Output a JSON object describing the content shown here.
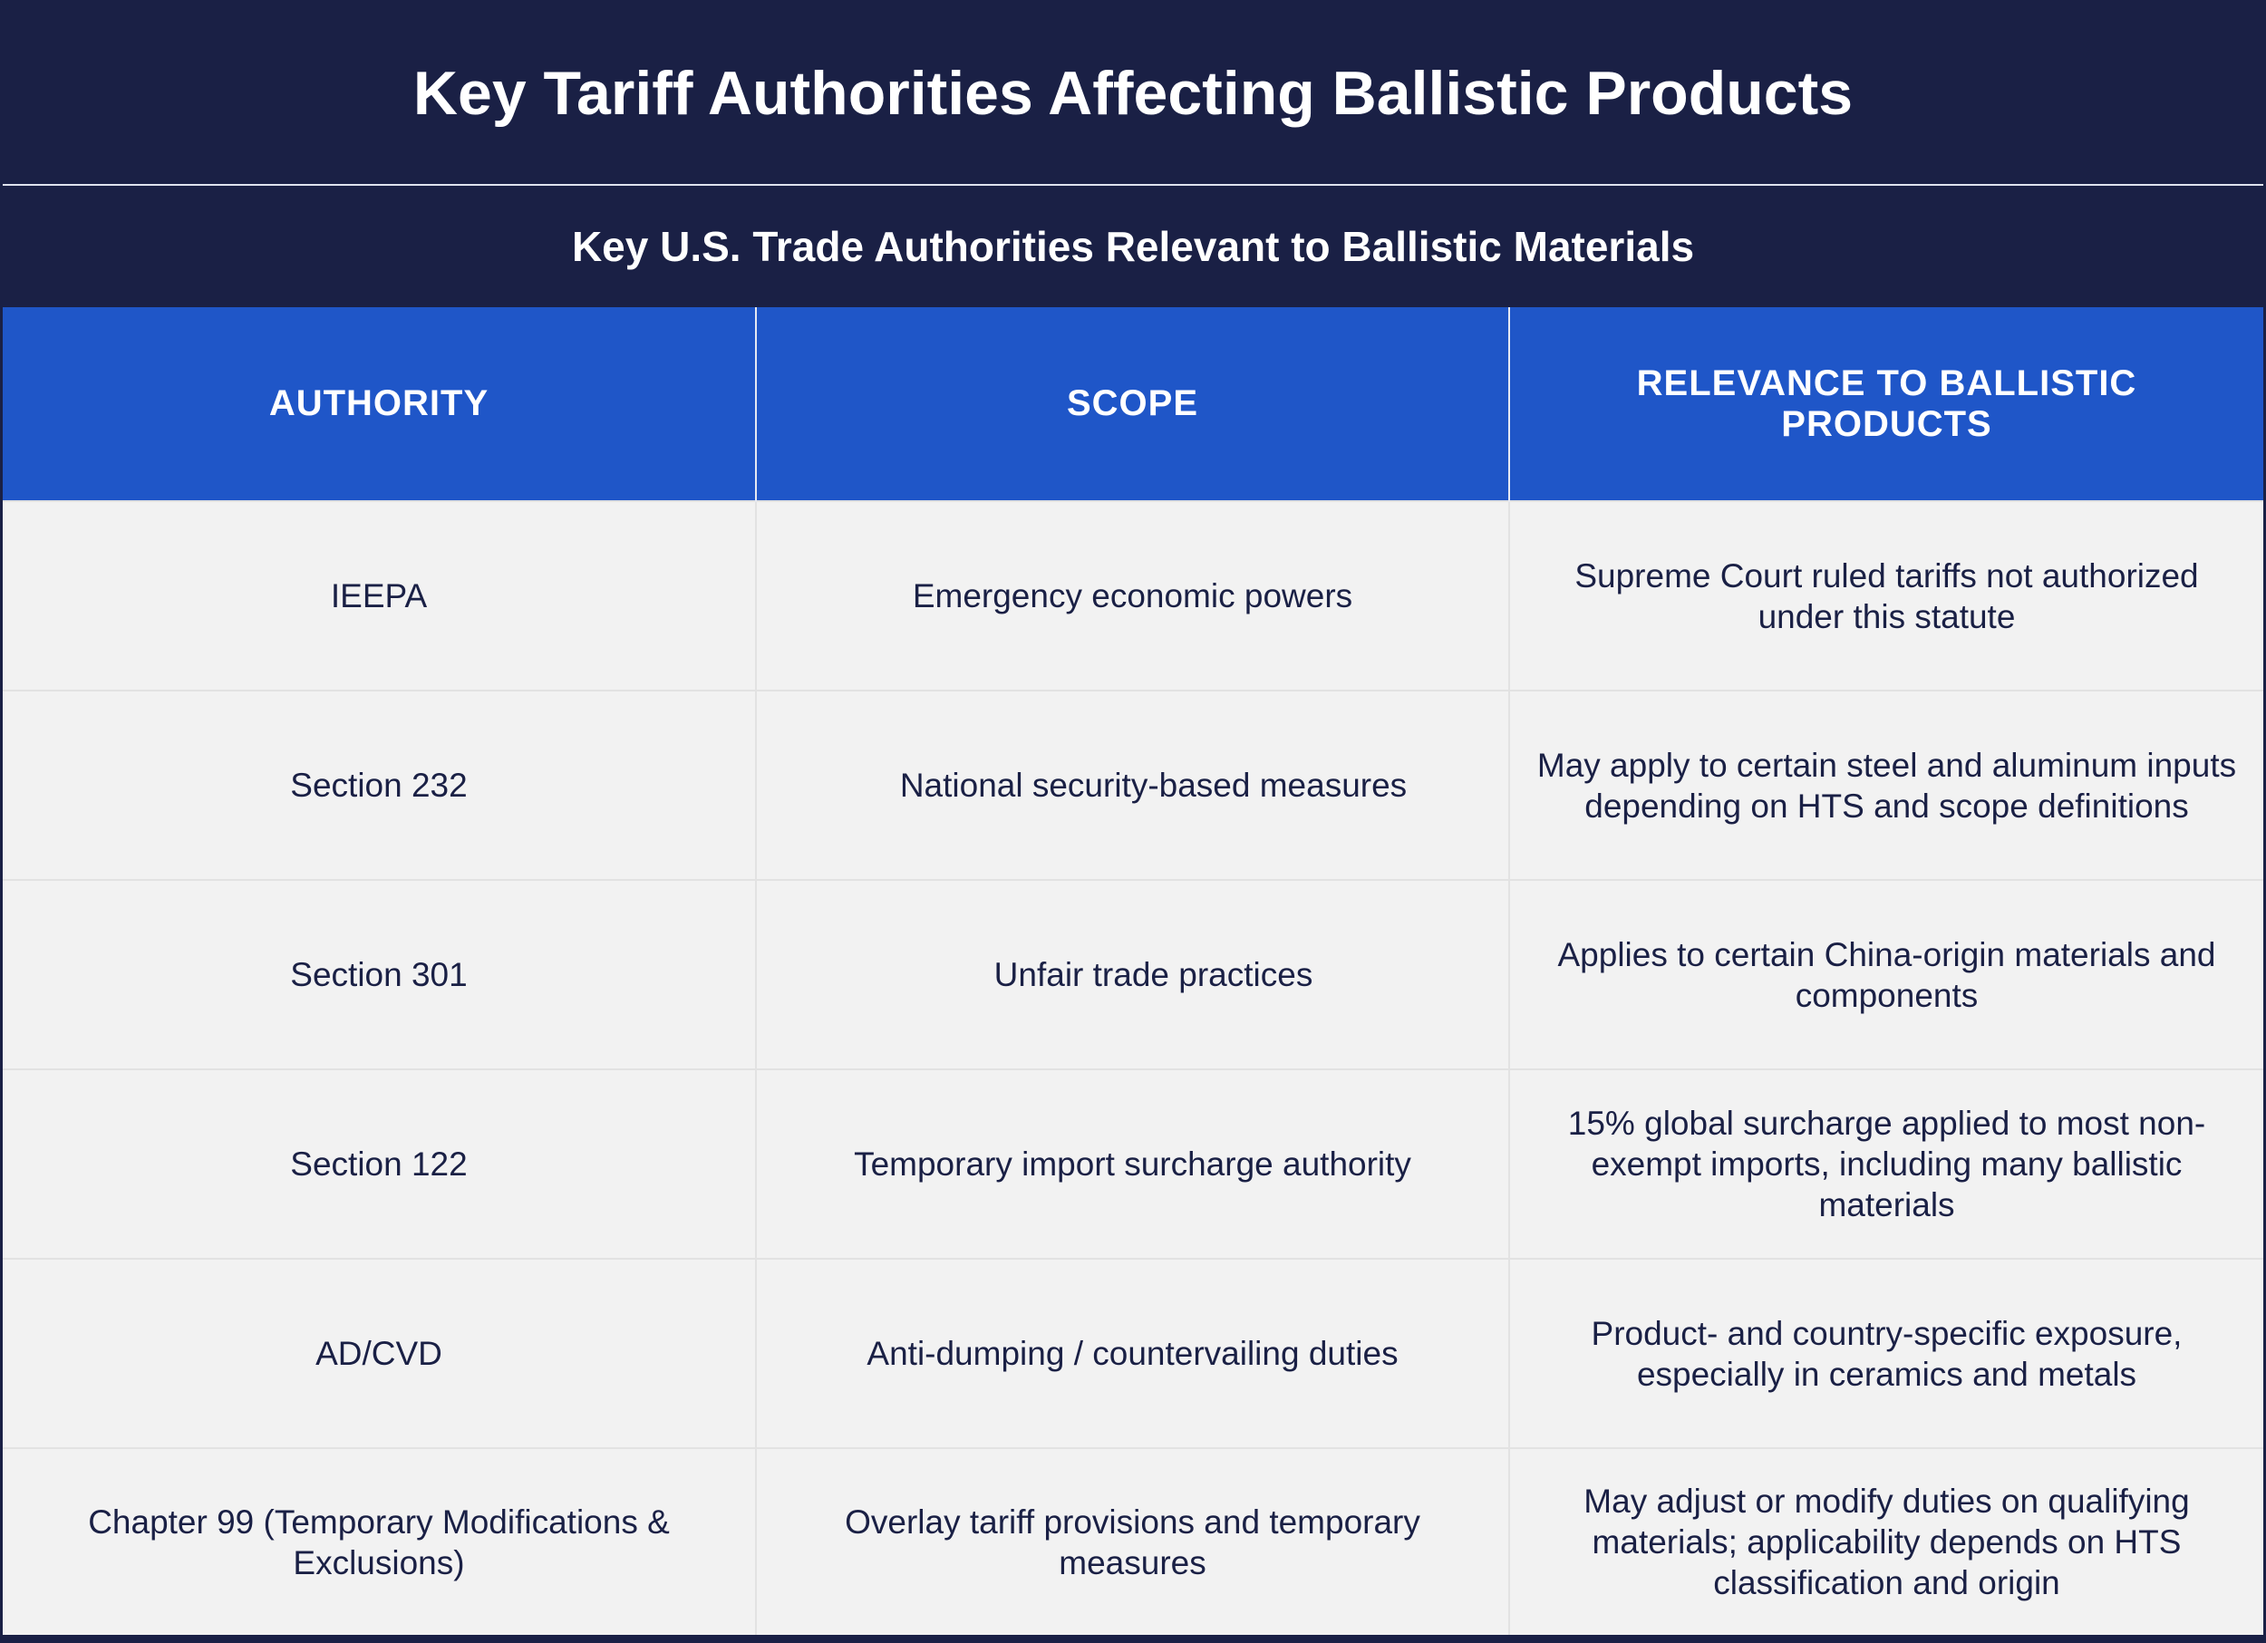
{
  "title": "Key Tariff Authorities Affecting Ballistic Products",
  "subtitle": "Key U.S. Trade Authorities Relevant to Ballistic Materials",
  "columns": [
    "AUTHORITY",
    "SCOPE",
    "RELEVANCE TO BALLISTIC PRODUCTS"
  ],
  "rows": [
    {
      "authority": "IEEPA",
      "scope": "Emergency economic powers",
      "relevance": "Supreme Court ruled tariffs not authorized under this statute"
    },
    {
      "authority": "Section 232",
      "scope": "National security-based measures",
      "relevance": "May apply to certain steel and aluminum inputs depending on HTS and scope definitions"
    },
    {
      "authority": "Section 301",
      "scope": "Unfair trade practices",
      "relevance": "Applies to certain China-origin materials and components"
    },
    {
      "authority": "Section 122",
      "scope": "Temporary import surcharge authority",
      "relevance": "15% global surcharge applied to most non-exempt imports, including many ballistic materials"
    },
    {
      "authority": "AD/CVD",
      "scope": "Anti-dumping / countervailing duties",
      "relevance": "Product- and country-specific exposure, especially in ceramics and metals"
    },
    {
      "authority": "Chapter 99 (Temporary Modifications & Exclusions)",
      "scope": "Overlay tariff provisions and temporary measures",
      "relevance": "May adjust or modify duties on qualifying materials; applicability depends on HTS classification and origin"
    }
  ],
  "colors": {
    "navy": "#1a2045",
    "header_blue": "#1f56c8",
    "row_bg": "#f2f2f2",
    "text": "#1a2045"
  }
}
